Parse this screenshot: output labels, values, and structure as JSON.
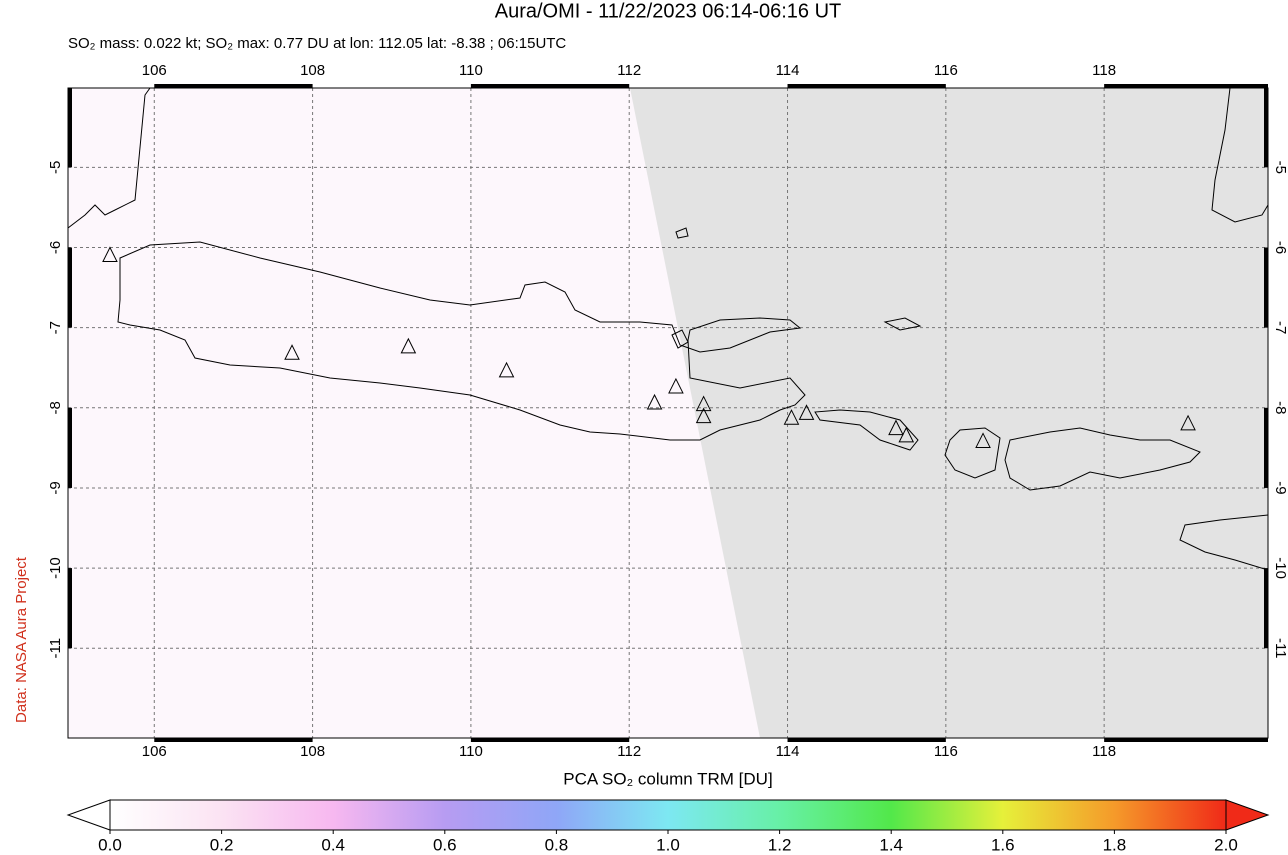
{
  "title": "Aura/OMI - 11/22/2023 06:14-06:16 UT",
  "subtitle": "SO₂ mass: 0.022 kt; SO₂ max: 0.77 DU at lon: 112.05 lat: -8.38 ; 06:15UTC",
  "side_label": "Data: NASA Aura Project",
  "map": {
    "xlim": [
      104.91,
      120.07
    ],
    "ylim": [
      -12.12,
      -4.01
    ],
    "xticks": [
      106,
      108,
      110,
      112,
      114,
      116,
      118
    ],
    "yticks": [
      -5,
      -6,
      -7,
      -8,
      -9,
      -10,
      -11
    ],
    "grid": true,
    "volcanoes": {
      "lon": [
        105.44,
        107.74,
        109.21,
        110.45,
        112.32,
        112.59,
        112.94,
        112.94,
        114.05,
        114.24,
        115.37,
        115.5,
        116.47,
        119.06
      ],
      "lat": [
        -6.1,
        -7.32,
        -7.24,
        -7.54,
        -7.94,
        -7.74,
        -7.96,
        -8.11,
        -8.13,
        -8.07,
        -8.26,
        -8.35,
        -8.42,
        -8.2
      ]
    }
  },
  "colorbar": {
    "label": "PCA SO₂ column TRM [DU]",
    "lim": [
      0,
      2
    ],
    "ticks": [
      {
        "value": 0,
        "label": "0.0"
      },
      {
        "value": 0.2,
        "label": "0.2"
      },
      {
        "value": 0.4,
        "label": "0.4"
      },
      {
        "value": 0.6,
        "label": "0.6"
      },
      {
        "value": 0.8,
        "label": "0.8"
      },
      {
        "value": 1,
        "label": "1.0"
      },
      {
        "value": 1.2,
        "label": "1.2"
      },
      {
        "value": 1.4,
        "label": "1.4"
      },
      {
        "value": 1.6,
        "label": "1.6"
      },
      {
        "value": 1.8,
        "label": "1.8"
      },
      {
        "value": 2,
        "label": "2.0"
      }
    ]
  }
}
